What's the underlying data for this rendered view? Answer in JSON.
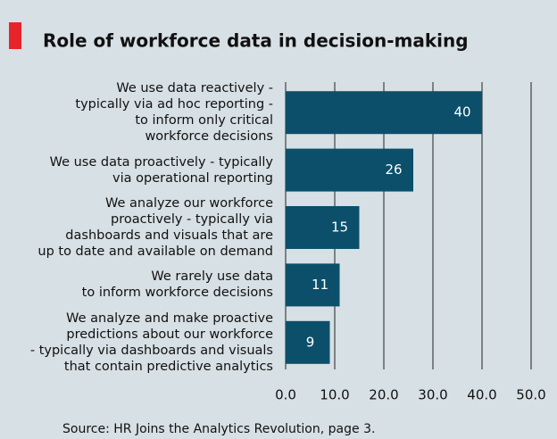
{
  "chart_data": {
    "type": "bar",
    "orientation": "horizontal",
    "title": "Role of workforce data in decision-making",
    "source": "Source: HR Joins the Analytics Revolution, page 3.",
    "categories": [
      "We use data reactively -\ntypically via ad hoc reporting -\nto inform only critical\nworkforce decisions",
      "We use data proactively - typically\nvia operational reporting",
      "We analyze our workforce\nproactively - typically via\ndashboards and visuals that are\nup to date and available on demand",
      "We rarely use data\nto inform workforce decisions",
      "We analyze and make proactive\npredictions  about our workforce\n- typically via dashboards and visuals\nthat contain predictive analytics"
    ],
    "values": [
      40,
      26,
      15,
      11,
      9
    ],
    "color": "#0c4f6b",
    "xlim": [
      0,
      50
    ],
    "xticks": [
      {
        "value": 0,
        "label": "0.0"
      },
      {
        "value": 10,
        "label": "10.0"
      },
      {
        "value": 20,
        "label": "20.0"
      },
      {
        "value": 30,
        "label": "30.0"
      },
      {
        "value": 40,
        "label": "40.0"
      },
      {
        "value": 50,
        "label": "50.0"
      }
    ],
    "grid": true
  }
}
